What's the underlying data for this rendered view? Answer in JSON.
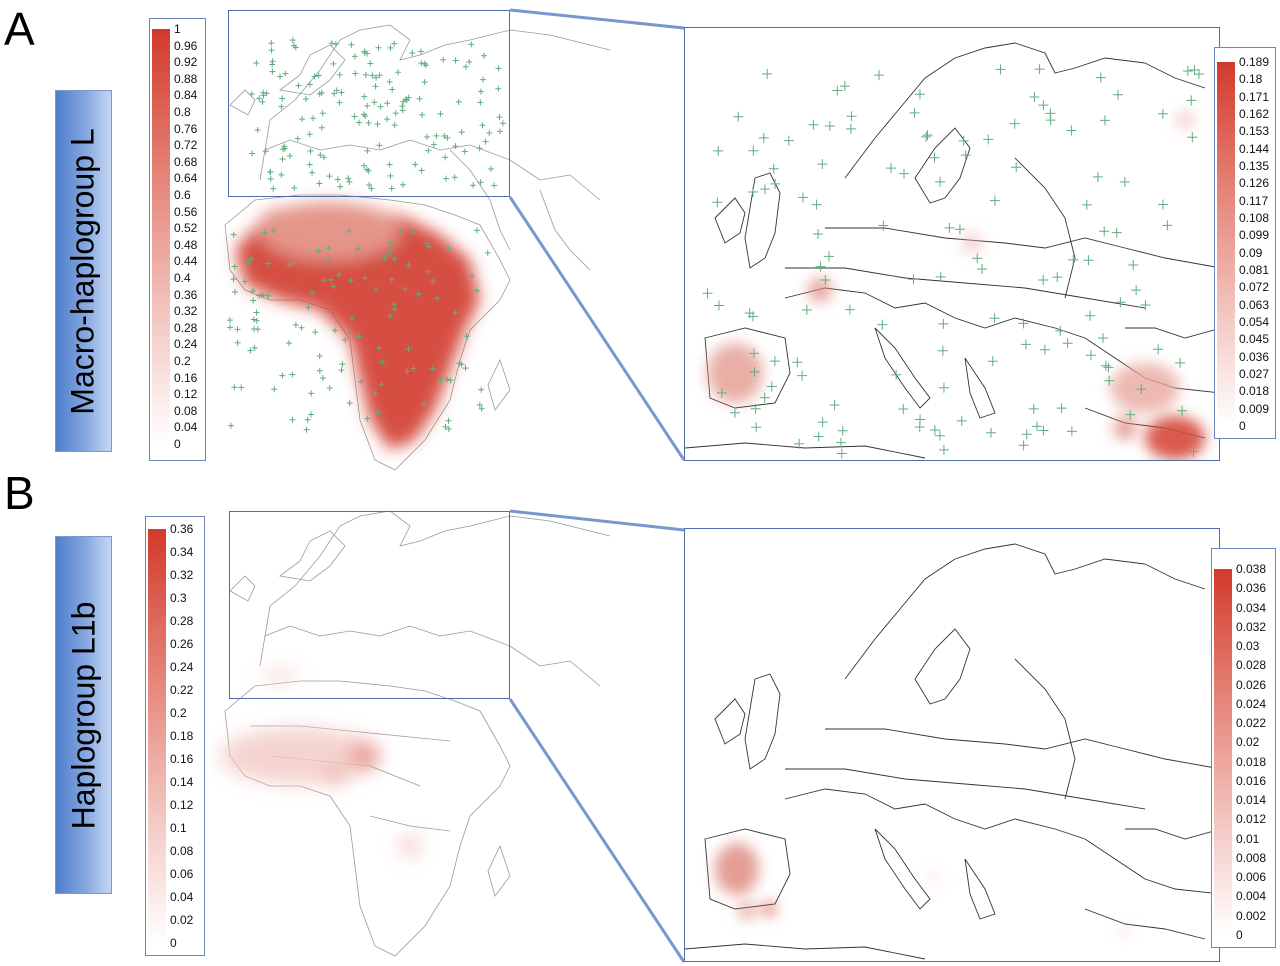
{
  "panels": [
    {
      "letter": "A",
      "label": "Macro-haplogroup L",
      "world_legend": {
        "ticks": [
          "1",
          "0.96",
          "0.92",
          "0.88",
          "0.84",
          "0.8",
          "0.76",
          "0.72",
          "0.68",
          "0.64",
          "0.6",
          "0.56",
          "0.52",
          "0.48",
          "0.44",
          "0.4",
          "0.36",
          "0.32",
          "0.28",
          "0.24",
          "0.2",
          "0.16",
          "0.12",
          "0.08",
          "0.04",
          "0"
        ]
      },
      "europe_legend": {
        "ticks": [
          "0.189",
          "0.18",
          "0.171",
          "0.162",
          "0.153",
          "0.144",
          "0.135",
          "0.126",
          "0.117",
          "0.108",
          "0.099",
          "0.09",
          "0.081",
          "0.072",
          "0.063",
          "0.054",
          "0.045",
          "0.036",
          "0.027",
          "0.018",
          "0.009",
          "0"
        ]
      },
      "sample_markers": true
    },
    {
      "letter": "B",
      "label": "Haplogroup L1b",
      "world_legend": {
        "ticks": [
          "0.36",
          "0.34",
          "0.32",
          "0.3",
          "0.28",
          "0.26",
          "0.24",
          "0.22",
          "0.2",
          "0.18",
          "0.16",
          "0.14",
          "0.12",
          "0.1",
          "0.08",
          "0.06",
          "0.04",
          "0.02",
          "0"
        ]
      },
      "europe_legend": {
        "ticks": [
          "0.038",
          "0.036",
          "0.034",
          "0.032",
          "0.03",
          "0.028",
          "0.026",
          "0.024",
          "0.022",
          "0.02",
          "0.018",
          "0.016",
          "0.014",
          "0.012",
          "0.01",
          "0.008",
          "0.006",
          "0.004",
          "0.002",
          "0"
        ]
      },
      "sample_markers": false
    }
  ],
  "colors": {
    "heat_max": "#d23a2b",
    "heat_min": "#ffffff",
    "marker": "#5fae7f",
    "frame": "#4f6ea8",
    "zoom_line": "#7897cf",
    "label_gradient_dark": "#4f7ecb",
    "label_gradient_light": "#c6d7f3"
  }
}
